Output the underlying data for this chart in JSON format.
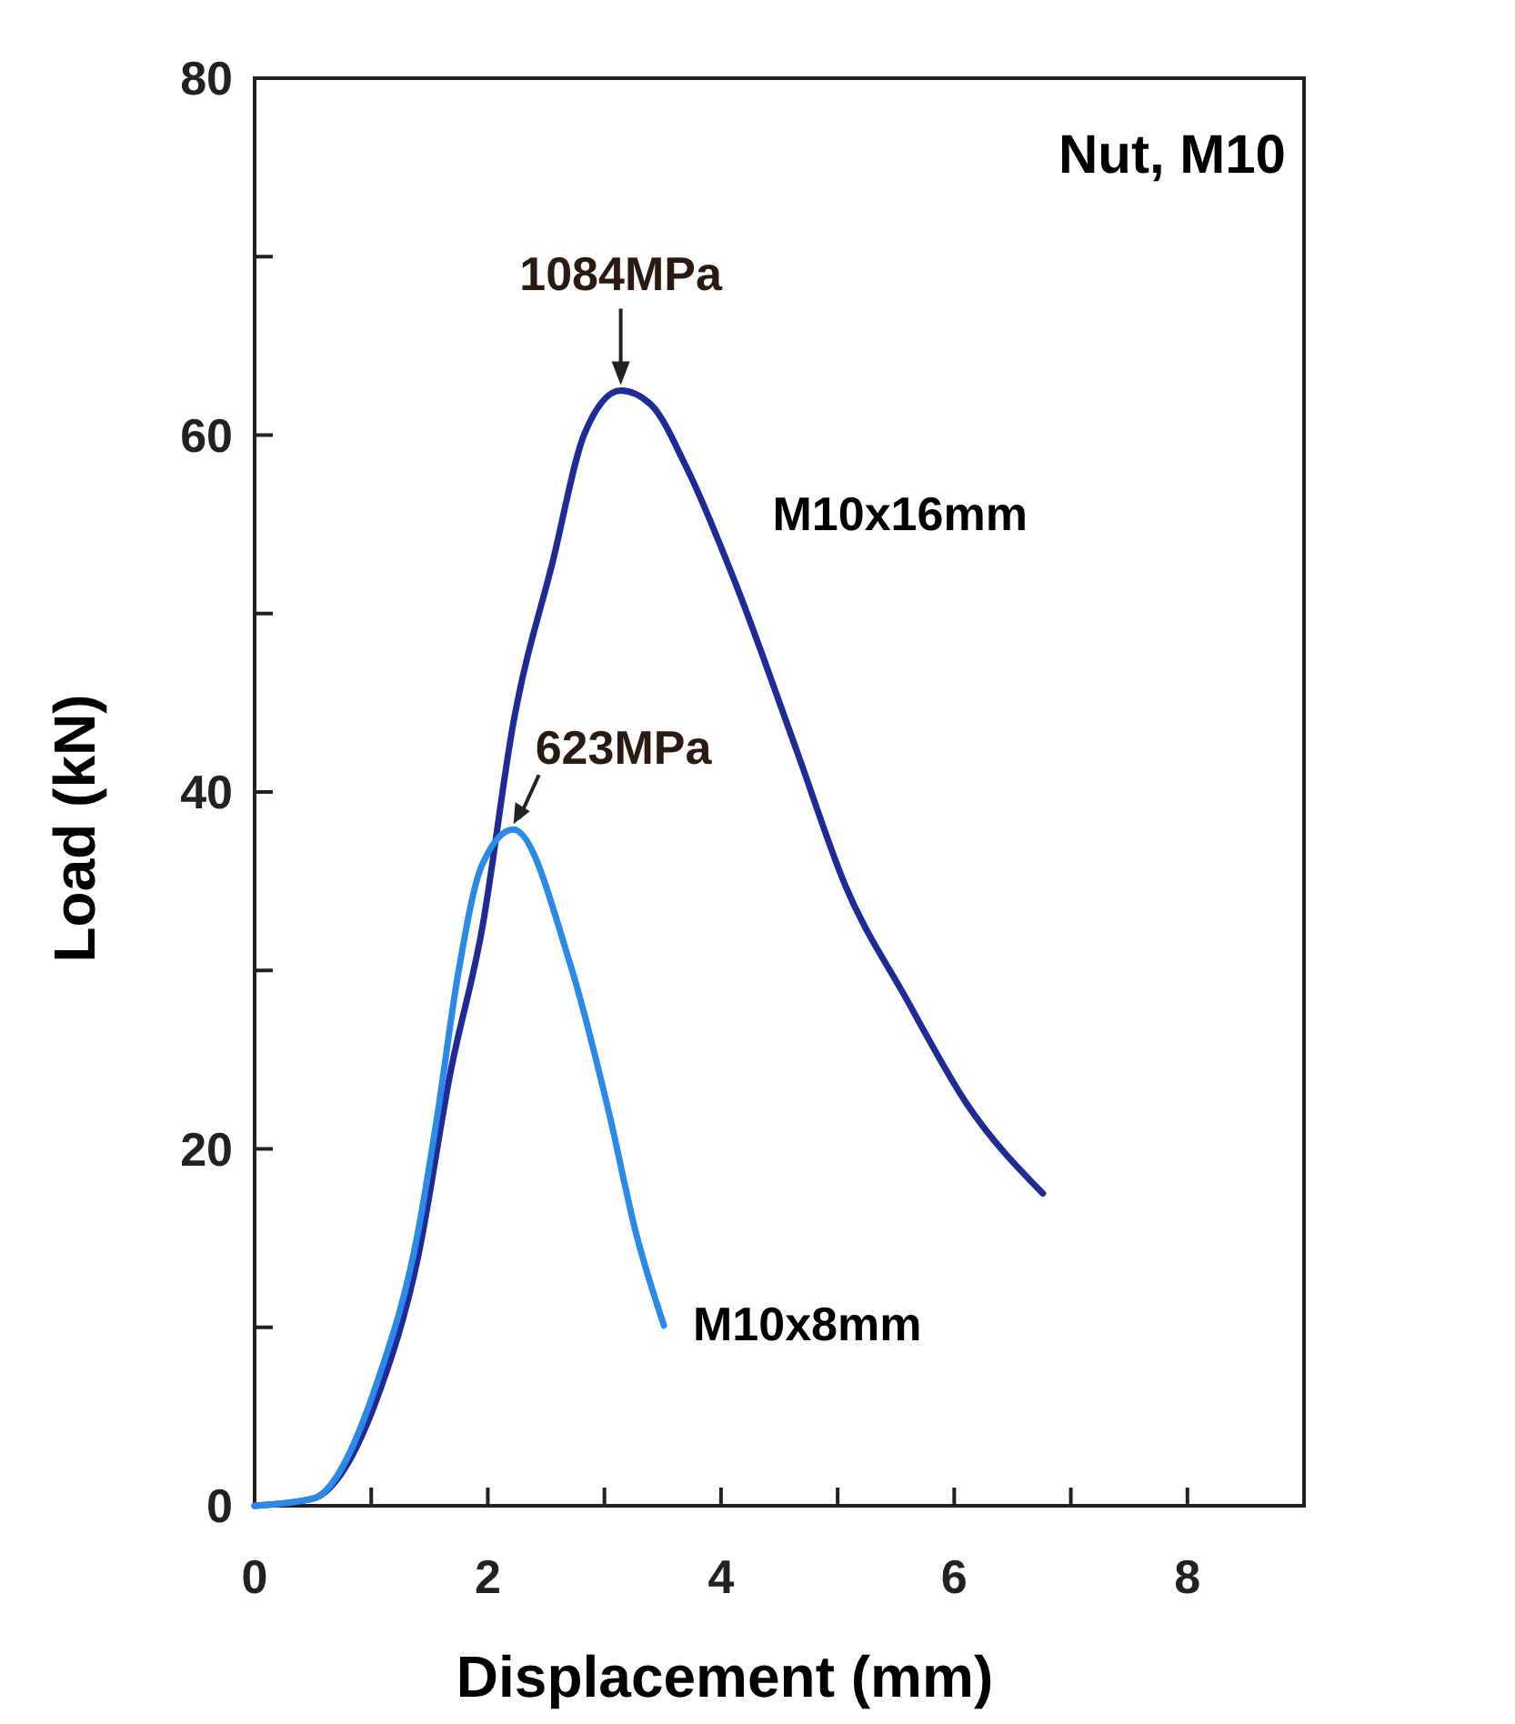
{
  "chart_data": {
    "type": "line",
    "title": "Nut, M10",
    "xlabel": "Displacement (mm)",
    "ylabel": "Load (kN)",
    "xlim": [
      0,
      9
    ],
    "ylim": [
      0,
      80
    ],
    "xticks": [
      0,
      {
        "value": 1,
        "label": null
      },
      2,
      {
        "value": 3,
        "label": null
      },
      4,
      {
        "value": 5,
        "label": null
      },
      6,
      {
        "value": 7,
        "label": null
      },
      8
    ],
    "yticks": [
      0,
      {
        "value": 10,
        "label": null
      },
      20,
      {
        "value": 30,
        "label": null
      },
      40,
      {
        "value": 50,
        "label": null
      },
      60,
      {
        "value": 70,
        "label": null
      },
      80
    ],
    "grid": false,
    "marker": "none",
    "line_style": "solid",
    "series": [
      {
        "name": "M10x16mm",
        "color": "#1f2a96",
        "x": [
          0,
          0.5,
          1.06,
          1.4,
          1.68,
          1.95,
          2.22,
          2.56,
          2.83,
          3.14,
          3.4,
          3.71,
          4.13,
          4.65,
          5.07,
          5.59,
          6.1,
          6.76
        ],
        "values": [
          0,
          0.4,
          6.2,
          13.9,
          24.3,
          32.3,
          43.9,
          53,
          60.1,
          62.5,
          61.7,
          58.1,
          51.6,
          42.3,
          34.7,
          28.4,
          22.6,
          17.5
        ]
      },
      {
        "name": "M10x8mm",
        "color": "#2a8ae8",
        "x": [
          0,
          0.5,
          1.06,
          1.4,
          1.57,
          1.74,
          1.95,
          2.22,
          2.7,
          3.04,
          3.27,
          3.51
        ],
        "values": [
          0,
          0.4,
          7.1,
          15.3,
          22,
          29.6,
          35.9,
          37.9,
          30.5,
          22,
          15.3,
          10.1
        ]
      }
    ],
    "annotations": [
      {
        "text": "1084MPa",
        "x": 3.14,
        "y": 62.5
      },
      {
        "text": "623MPa",
        "x": 2.22,
        "y": 37.9
      }
    ]
  }
}
